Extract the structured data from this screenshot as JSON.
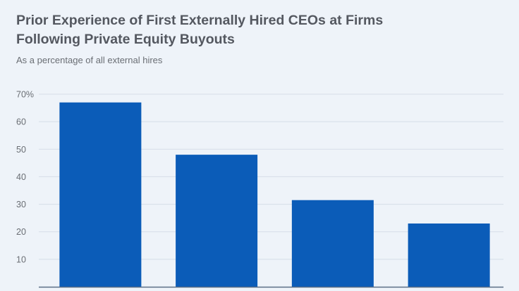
{
  "title": "Prior Experience of First Externally Hired CEOs at Firms Following Private Equity Buyouts",
  "subtitle": "As a percentage of all external hires",
  "colors": {
    "background": "#eef3f9",
    "bar": "#0b5cb8",
    "grid": "#d5dde7",
    "axis": "#5a6e86"
  },
  "chart_data": {
    "type": "bar",
    "title": "Prior Experience of First Externally Hired CEOs at Firms Following Private Equity Buyouts",
    "subtitle": "As a percentage of all external hires",
    "categories": [
      "",
      "",
      "",
      ""
    ],
    "values": [
      67,
      48,
      31.5,
      23
    ],
    "ylim": [
      0,
      70
    ],
    "yticks": [
      {
        "value": 70,
        "label": "70%"
      },
      {
        "value": 60,
        "label": "60"
      },
      {
        "value": 50,
        "label": "50"
      },
      {
        "value": 40,
        "label": "40"
      },
      {
        "value": 30,
        "label": "30"
      },
      {
        "value": 20,
        "label": "20"
      },
      {
        "value": 10,
        "label": "10"
      }
    ],
    "grid": true,
    "xlabel": "",
    "ylabel": ""
  }
}
